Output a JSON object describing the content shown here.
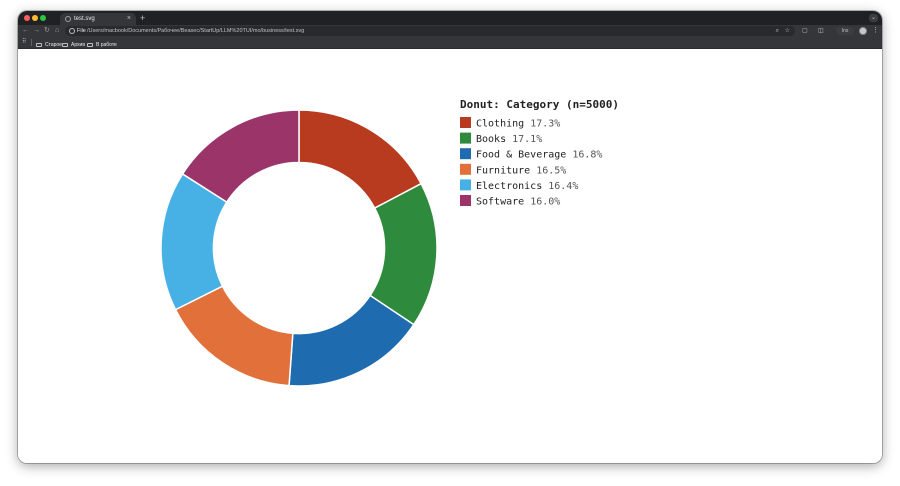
{
  "browser": {
    "tab": {
      "title": "test.svg",
      "close_glyph": "×"
    },
    "new_tab_glyph": "+",
    "tab_menu_glyph": "⌄",
    "nav": {
      "back": "←",
      "forward": "→",
      "reload": "↻",
      "home": "⌂"
    },
    "omnibox": {
      "scheme_label": "File",
      "url": "/Users/macbook/Documents/Рабочее/Bеasec/StartUp/LLM%20TUI/mo/business/test.svg",
      "zoom_glyph": "⌕",
      "star_glyph": "☆"
    },
    "toolbar": {
      "extension_glyph": "▢",
      "sidebar_glyph": "◫",
      "profile_label": "Ins",
      "menu_glyph": "⋮"
    },
    "bookmarks": {
      "apps_glyph": "⠿",
      "items": [
        {
          "label": "Старое"
        },
        {
          "label": "Архив"
        },
        {
          "label": "В работе"
        }
      ]
    },
    "icons": {
      "close": "close-icon",
      "info": "info-icon",
      "zoom": "zoom-icon",
      "star": "star-icon",
      "folder": "folder-icon",
      "apps": "apps-grid-icon",
      "menu": "kebab-menu-icon"
    }
  },
  "chart_data": {
    "type": "pie",
    "variant": "donut",
    "title": "Donut: Category (n=5000)",
    "inner_radius_ratio": 0.62,
    "start_angle_deg": 0,
    "legend_placement": "right",
    "slices": [
      {
        "label": "Clothing",
        "value": 17.3,
        "pct_label": "17.3%",
        "color": "#b83a1f"
      },
      {
        "label": "Books",
        "value": 17.1,
        "pct_label": "17.1%",
        "color": "#2e8a3d"
      },
      {
        "label": "Food & Beverage",
        "value": 16.8,
        "pct_label": "16.8%",
        "color": "#1f6bb0"
      },
      {
        "label": "Furniture",
        "value": 16.5,
        "pct_label": "16.5%",
        "color": "#e2703a"
      },
      {
        "label": "Electronics",
        "value": 16.4,
        "pct_label": "16.4%",
        "color": "#47b1e6"
      },
      {
        "label": "Software",
        "value": 16.0,
        "pct_label": "16.0%",
        "color": "#9b3468"
      }
    ]
  }
}
